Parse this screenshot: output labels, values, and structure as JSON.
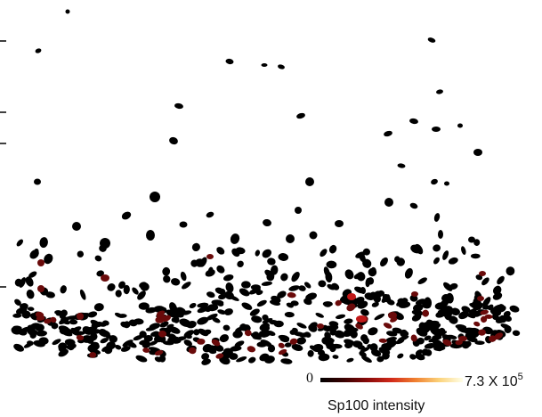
{
  "figure": {
    "background": "#ffffff",
    "cell_color": "#000000",
    "mid_color": "#6a0a0a",
    "high_color": "#c01818",
    "colorbar": {
      "min_label": "0",
      "max_label": "7.3 X 10",
      "max_exponent": "5",
      "title": "Sp100 intensity",
      "stops": [
        "#000000",
        "#3a0000",
        "#8a0a0a",
        "#d22a1a",
        "#f08030",
        "#fbd27a",
        "#ffffe8"
      ]
    }
  }
}
